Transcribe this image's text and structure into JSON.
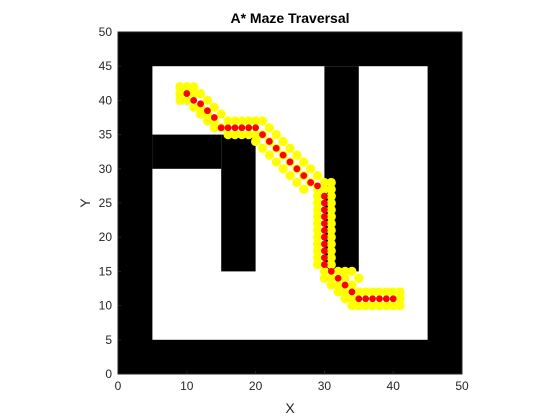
{
  "chart_data": {
    "type": "scatter",
    "title": "A* Maze Traversal",
    "xlabel": "X",
    "ylabel": "Y",
    "xlim": [
      0,
      50
    ],
    "ylim": [
      0,
      50
    ],
    "xticks": [
      "0",
      "10",
      "20",
      "30",
      "40",
      "50"
    ],
    "yticks": [
      "0",
      "5",
      "10",
      "15",
      "20",
      "25",
      "30",
      "35",
      "40",
      "45",
      "50"
    ],
    "grid": false,
    "maze": {
      "wall_color": "#000000",
      "open_color": "#ffffff",
      "open_regions": [
        {
          "x0": 5,
          "y0": 5,
          "x1": 45,
          "y1": 45
        }
      ],
      "wall_regions": [
        {
          "x0": 5,
          "y0": 30,
          "x1": 15,
          "y1": 35
        },
        {
          "x0": 15,
          "y0": 15,
          "x1": 20,
          "y1": 35
        },
        {
          "x0": 30,
          "y0": 15,
          "x1": 35,
          "y1": 45
        }
      ]
    },
    "series": [
      {
        "color": "#ffff00",
        "role": "explored",
        "points": [
          [
            9,
            42
          ],
          [
            10,
            42
          ],
          [
            11,
            42
          ],
          [
            9,
            41
          ],
          [
            11,
            41
          ],
          [
            9,
            40
          ],
          [
            10,
            40
          ],
          [
            12,
            41
          ],
          [
            12,
            39
          ],
          [
            11,
            39
          ],
          [
            13,
            40
          ],
          [
            13,
            38
          ],
          [
            12,
            38
          ],
          [
            14,
            39
          ],
          [
            14,
            37
          ],
          [
            13,
            37
          ],
          [
            15,
            38
          ],
          [
            15,
            36
          ],
          [
            14,
            36
          ],
          [
            16,
            37
          ],
          [
            16,
            35
          ],
          [
            17,
            37
          ],
          [
            17,
            35
          ],
          [
            18,
            37
          ],
          [
            18,
            35
          ],
          [
            19,
            37
          ],
          [
            19,
            35
          ],
          [
            20,
            37
          ],
          [
            20,
            35
          ],
          [
            21,
            37
          ],
          [
            22,
            36
          ],
          [
            21,
            35
          ],
          [
            20,
            34
          ],
          [
            22,
            34
          ],
          [
            23,
            35
          ],
          [
            21,
            33
          ],
          [
            23,
            33
          ],
          [
            24,
            34
          ],
          [
            22,
            32
          ],
          [
            24,
            32
          ],
          [
            25,
            33
          ],
          [
            23,
            31
          ],
          [
            25,
            31
          ],
          [
            26,
            32
          ],
          [
            24,
            30
          ],
          [
            26,
            30
          ],
          [
            27,
            31
          ],
          [
            25,
            29
          ],
          [
            27,
            29
          ],
          [
            28,
            30
          ],
          [
            26,
            28
          ],
          [
            28,
            28
          ],
          [
            29,
            29
          ],
          [
            27,
            27
          ],
          [
            29,
            27
          ],
          [
            30,
            28
          ],
          [
            31,
            28
          ],
          [
            30,
            27
          ],
          [
            31,
            27
          ],
          [
            29,
            26
          ],
          [
            31,
            26
          ],
          [
            29,
            25
          ],
          [
            31,
            25
          ],
          [
            29,
            24
          ],
          [
            31,
            24
          ],
          [
            29,
            23
          ],
          [
            31,
            23
          ],
          [
            29,
            22
          ],
          [
            31,
            22
          ],
          [
            29,
            21
          ],
          [
            31,
            21
          ],
          [
            29,
            20
          ],
          [
            31,
            20
          ],
          [
            29,
            19
          ],
          [
            31,
            19
          ],
          [
            29,
            18
          ],
          [
            31,
            18
          ],
          [
            29,
            17
          ],
          [
            31,
            17
          ],
          [
            29,
            16
          ],
          [
            31,
            16
          ],
          [
            30,
            15
          ],
          [
            32,
            15
          ],
          [
            30,
            14
          ],
          [
            31,
            14
          ],
          [
            33,
            15
          ],
          [
            34,
            15
          ],
          [
            31,
            13
          ],
          [
            32,
            13
          ],
          [
            33,
            14
          ],
          [
            35,
            14
          ],
          [
            32,
            12
          ],
          [
            33,
            12
          ],
          [
            34,
            13
          ],
          [
            35,
            12
          ],
          [
            33,
            11
          ],
          [
            34,
            11
          ],
          [
            36,
            12
          ],
          [
            37,
            12
          ],
          [
            38,
            12
          ],
          [
            39,
            12
          ],
          [
            40,
            12
          ],
          [
            41,
            12
          ],
          [
            34,
            10
          ],
          [
            35,
            10
          ],
          [
            36,
            10
          ],
          [
            37,
            10
          ],
          [
            38,
            10
          ],
          [
            39,
            10
          ],
          [
            40,
            10
          ],
          [
            41,
            10
          ],
          [
            41,
            11
          ]
        ]
      },
      {
        "color": "#ff0000",
        "role": "path",
        "points": [
          [
            10,
            41
          ],
          [
            11,
            40
          ],
          [
            12,
            39.5
          ],
          [
            13,
            38.5
          ],
          [
            14,
            37.5
          ],
          [
            15,
            36
          ],
          [
            16,
            36
          ],
          [
            17,
            36
          ],
          [
            18,
            36
          ],
          [
            19,
            36
          ],
          [
            20,
            36
          ],
          [
            21,
            35
          ],
          [
            22,
            34
          ],
          [
            23,
            33
          ],
          [
            24,
            32
          ],
          [
            25,
            31
          ],
          [
            26,
            30
          ],
          [
            27,
            29
          ],
          [
            28,
            28
          ],
          [
            29,
            27.5
          ],
          [
            30,
            26
          ],
          [
            30,
            25
          ],
          [
            30,
            24
          ],
          [
            30,
            23
          ],
          [
            30,
            22
          ],
          [
            30,
            21
          ],
          [
            30,
            20
          ],
          [
            30,
            19
          ],
          [
            30,
            18
          ],
          [
            30,
            17
          ],
          [
            30,
            16
          ],
          [
            31,
            15
          ],
          [
            32,
            14
          ],
          [
            33,
            13
          ],
          [
            34,
            12
          ],
          [
            35,
            11
          ],
          [
            36,
            11
          ],
          [
            37,
            11
          ],
          [
            38,
            11
          ],
          [
            39,
            11
          ],
          [
            40,
            11
          ]
        ]
      }
    ]
  }
}
